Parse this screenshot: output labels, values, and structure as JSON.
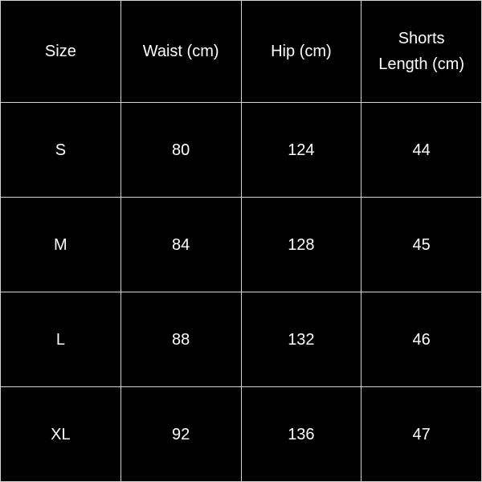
{
  "table": {
    "header": [
      "Size",
      "Waist (cm)",
      "Hip (cm)",
      "Shorts Length (cm)"
    ],
    "rows": [
      [
        "S",
        80,
        124,
        44
      ],
      [
        "M",
        84,
        128,
        45
      ],
      [
        "L",
        88,
        132,
        46
      ],
      [
        "XL",
        92,
        136,
        47
      ]
    ]
  }
}
